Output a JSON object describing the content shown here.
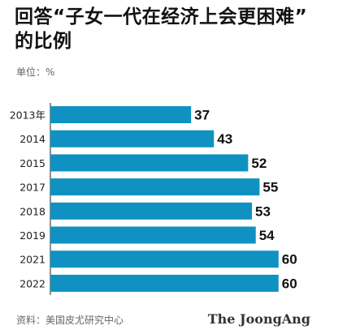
{
  "title_line1": "回答“子女一代在经济上会更困难”",
  "title_line2": "的比例",
  "unit_label": "单位：%",
  "source_label": "资料：美国皮尤研究中心",
  "brand": "The JoongAng",
  "bar_color": "#0f92c2",
  "chart_data": {
    "type": "bar",
    "orientation": "horizontal",
    "title": "回答“子女一代在经济上会更困难”的比例",
    "categories": [
      "2013年",
      "2014",
      "2015",
      "2017",
      "2018",
      "2019",
      "2021",
      "2022"
    ],
    "values": [
      37,
      43,
      52,
      55,
      53,
      54,
      60,
      60
    ],
    "xlabel": "",
    "ylabel": "",
    "unit": "%",
    "xlim": [
      0,
      60
    ],
    "grid": false,
    "legend": "none"
  }
}
